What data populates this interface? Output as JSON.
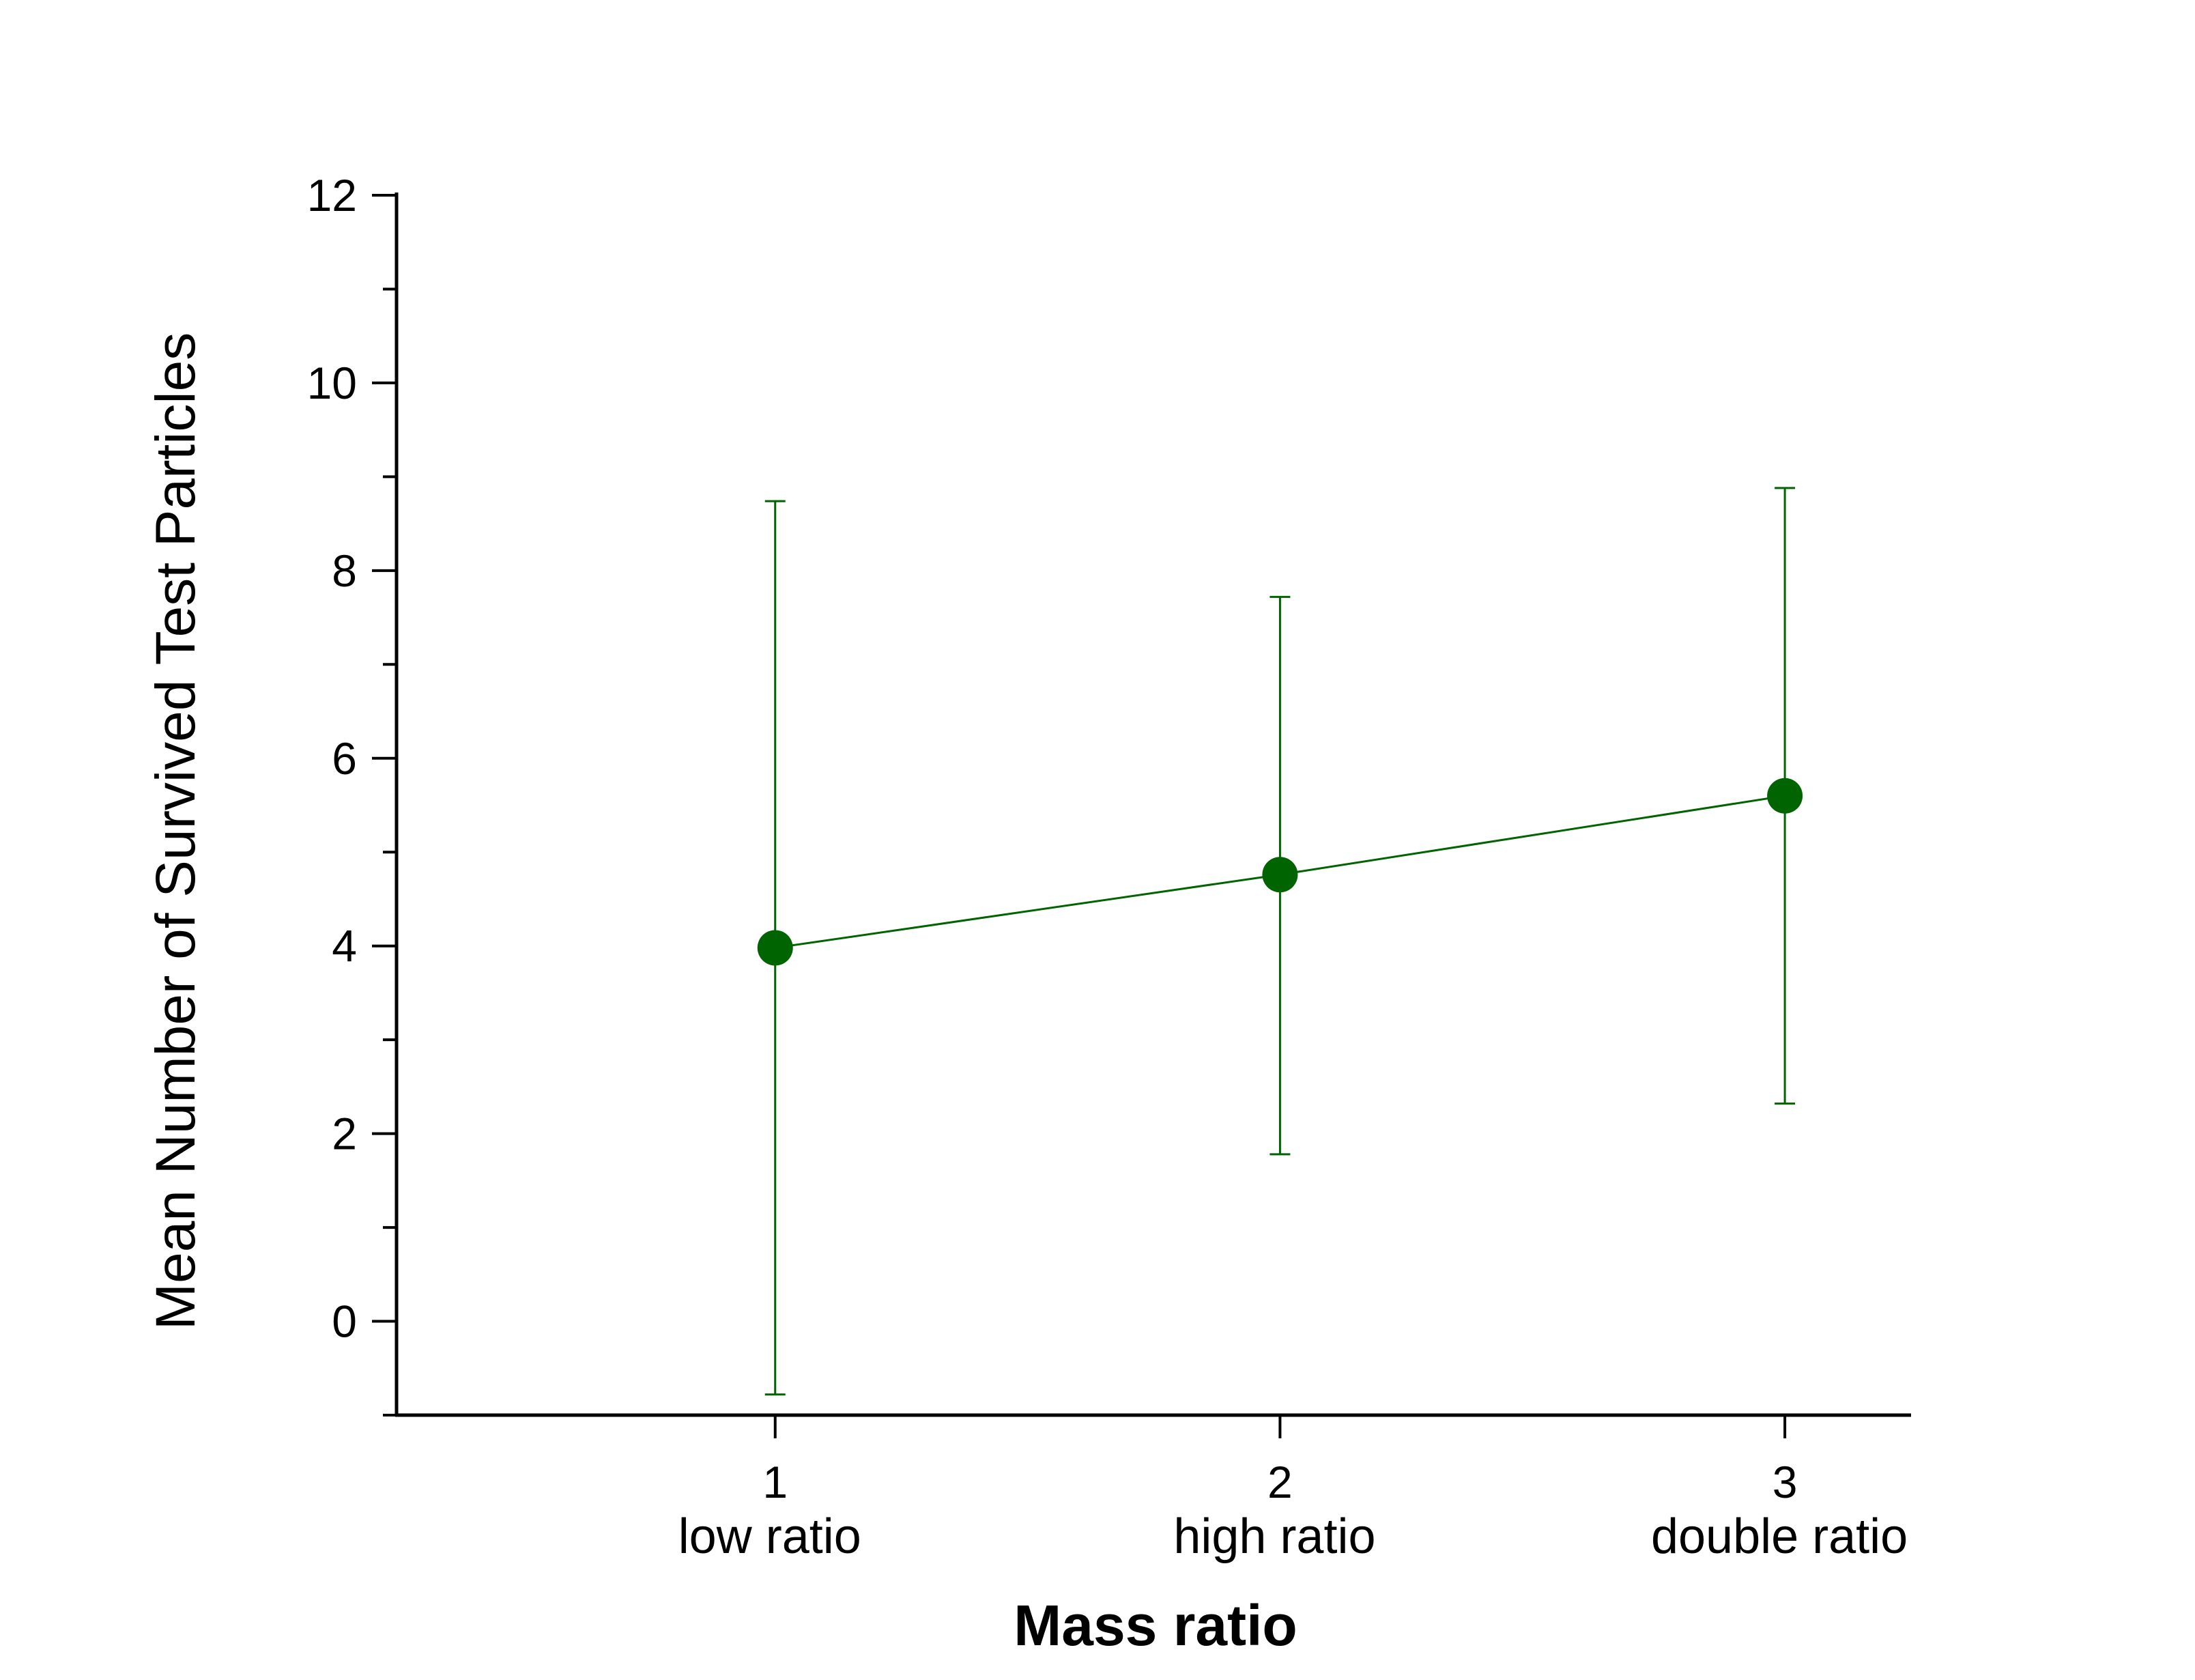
{
  "chart_data": {
    "type": "line",
    "title": "",
    "xlabel": "Mass ratio",
    "ylabel": "Mean Number of Survived Test Particles",
    "x": [
      1,
      2,
      3
    ],
    "x_tick_labels": [
      "1",
      "2",
      "3"
    ],
    "categories": [
      "low ratio",
      "high ratio",
      "double ratio"
    ],
    "y_ticks": [
      0,
      2,
      4,
      6,
      8,
      10,
      12
    ],
    "y_tick_labels": [
      "0",
      "2",
      "4",
      "6",
      "8",
      "10",
      "12"
    ],
    "xlim": [
      0.25,
      3.25
    ],
    "ylim": [
      -1,
      12
    ],
    "grid": false,
    "series": [
      {
        "name": "Mean",
        "color": "#006400",
        "values": [
          3.98,
          4.76,
          5.6
        ],
        "error_low": [
          -0.78,
          1.78,
          2.32
        ],
        "error_high": [
          8.74,
          7.72,
          8.88
        ]
      }
    ]
  }
}
